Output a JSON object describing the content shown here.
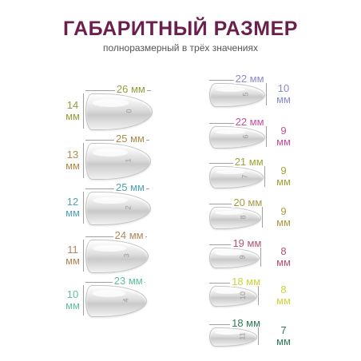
{
  "header": {
    "title": "ГАБАРИТНЫЙ РАЗМЕР",
    "subtitle": "полноразмерный в трёх значениях"
  },
  "left_column": [
    {
      "number": "0",
      "length": "26 мм",
      "length_color": "#9b9a3a",
      "width_value": "14",
      "width_unit": "мм",
      "width_color": "#9b9a3a"
    },
    {
      "number": "1",
      "length": "25 мм",
      "length_color": "#b08a4a",
      "width_value": "13",
      "width_unit": "мм",
      "width_color": "#b08a4a"
    },
    {
      "number": "2",
      "length": "25 мм",
      "length_color": "#4fa3b5",
      "width_value": "12",
      "width_unit": "мм",
      "width_color": "#4fa3b5"
    },
    {
      "number": "3",
      "length": "24 мм",
      "length_color": "#b2875a",
      "width_value": "11",
      "width_unit": "мм",
      "width_color": "#b2875a"
    },
    {
      "number": "4",
      "length": "23 мм",
      "length_color": "#5fbfa0",
      "width_value": "10",
      "width_unit": "мм",
      "width_color": "#5fbfa0"
    }
  ],
  "right_column": [
    {
      "number": "5",
      "length": "22 мм",
      "length_color": "#8a8ad0",
      "width_value": "10",
      "width_unit": "мм",
      "width_color": "#8a8ad0"
    },
    {
      "number": "6",
      "length": "22 мм",
      "length_color": "#c64f9f",
      "width_value": "9",
      "width_unit": "мм",
      "width_color": "#c64f9f"
    },
    {
      "number": "7",
      "length": "21 мм",
      "length_color": "#a3a33a",
      "width_value": "9",
      "width_unit": "мм",
      "width_color": "#a3a33a"
    },
    {
      "number": "8",
      "length": "20 мм",
      "length_color": "#a89a46",
      "width_value": "9",
      "width_unit": "мм",
      "width_color": "#a89a46"
    },
    {
      "number": "9",
      "length": "19 мм",
      "length_color": "#b0527a",
      "width_value": "8",
      "width_unit": "мм",
      "width_color": "#b0527a"
    },
    {
      "number": "10",
      "length": "18 мм",
      "length_color": "#cfd23a",
      "width_value": "8",
      "width_unit": "мм",
      "width_color": "#cfd23a"
    },
    {
      "number": "11",
      "length": "18 мм",
      "length_color": "#2f7a55",
      "width_value": "7",
      "width_unit": "мм",
      "width_color": "#2f7a55"
    }
  ]
}
